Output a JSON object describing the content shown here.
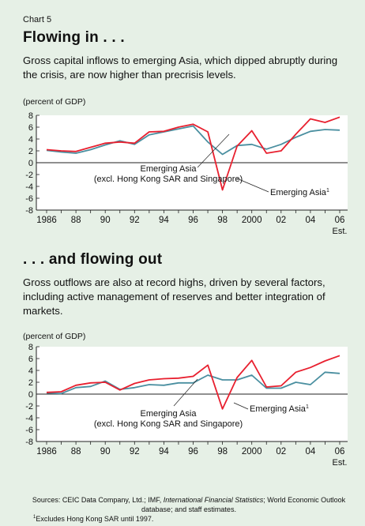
{
  "header": {
    "chart_number": "Chart 5"
  },
  "chart_data": [
    {
      "type": "line",
      "title": "Flowing in . . .",
      "subtitle": "Gross capital inflows to emerging Asia, which dipped abruptly during the crisis, are now higher than precrisis levels.",
      "unit_label": "(percent of GDP)",
      "x": [
        1986,
        1987,
        1988,
        1989,
        1990,
        1991,
        1992,
        1993,
        1994,
        1995,
        1996,
        1997,
        1998,
        1999,
        2000,
        2001,
        2002,
        2003,
        2004,
        2005,
        2006
      ],
      "x_tick_labels": [
        "1986",
        "88",
        "90",
        "92",
        "94",
        "96",
        "98",
        "2000",
        "02",
        "04",
        "06"
      ],
      "x_extra_label": "Est.",
      "ylim": [
        -8,
        8
      ],
      "y_ticks": [
        -8,
        -6,
        -4,
        -2,
        0,
        2,
        4,
        6,
        8
      ],
      "series": [
        {
          "name": "Emerging Asia",
          "footnote_mark": "1",
          "color": "#e8202f",
          "values": [
            2.2,
            2.0,
            1.9,
            2.6,
            3.3,
            3.5,
            3.3,
            5.2,
            5.3,
            6.0,
            6.5,
            5.2,
            -4.6,
            2.8,
            5.4,
            1.6,
            2.0,
            4.8,
            7.4,
            6.8,
            7.7
          ]
        },
        {
          "name": "Emerging Asia",
          "name_line2": "(excl. Hong Kong SAR and Singapore)",
          "color": "#4a8fa0",
          "values": [
            2.1,
            1.8,
            1.6,
            2.2,
            3.0,
            3.7,
            3.1,
            4.7,
            5.2,
            5.7,
            6.2,
            3.5,
            1.4,
            2.9,
            3.1,
            2.3,
            3.1,
            4.3,
            5.3,
            5.6,
            5.5
          ]
        }
      ]
    },
    {
      "type": "line",
      "title": ". . . and flowing out",
      "subtitle": "Gross outflows are also at record highs, driven by several factors, including active management of reserves and better integration of markets.",
      "unit_label": "(percent of GDP)",
      "x": [
        1986,
        1987,
        1988,
        1989,
        1990,
        1991,
        1992,
        1993,
        1994,
        1995,
        1996,
        1997,
        1998,
        1999,
        2000,
        2001,
        2002,
        2003,
        2004,
        2005,
        2006
      ],
      "x_tick_labels": [
        "1986",
        "88",
        "90",
        "92",
        "94",
        "96",
        "98",
        "2000",
        "02",
        "04",
        "06"
      ],
      "x_extra_label": "Est.",
      "ylim": [
        -8,
        8
      ],
      "y_ticks": [
        -8,
        -6,
        -4,
        -2,
        0,
        2,
        4,
        6,
        8
      ],
      "series": [
        {
          "name": "Emerging Asia",
          "footnote_mark": "1",
          "color": "#e8202f",
          "values": [
            0.3,
            0.4,
            1.5,
            1.9,
            2.0,
            0.7,
            1.8,
            2.4,
            2.6,
            2.7,
            3.0,
            4.9,
            -2.5,
            2.8,
            5.7,
            1.2,
            1.4,
            3.7,
            4.5,
            5.6,
            6.5
          ]
        },
        {
          "name": "Emerging Asia",
          "name_line2": "(excl. Hong Kong SAR and Singapore)",
          "color": "#4a8fa0",
          "values": [
            0.2,
            0.1,
            1.1,
            1.3,
            2.2,
            0.8,
            1.1,
            1.6,
            1.5,
            1.9,
            1.9,
            3.2,
            2.4,
            2.4,
            3.2,
            1.0,
            1.0,
            2.0,
            1.6,
            3.7,
            3.5
          ]
        }
      ]
    }
  ],
  "footer": {
    "sources_prefix": "Sources: CEIC Data Company, Ltd.; IMF, ",
    "sources_italic": "International Financial Statistics",
    "sources_suffix": "; World Economic Outlook database; and staff estimates.",
    "footnote_mark": "1",
    "footnote_text": "Excludes Hong Kong SAR until 1997."
  }
}
